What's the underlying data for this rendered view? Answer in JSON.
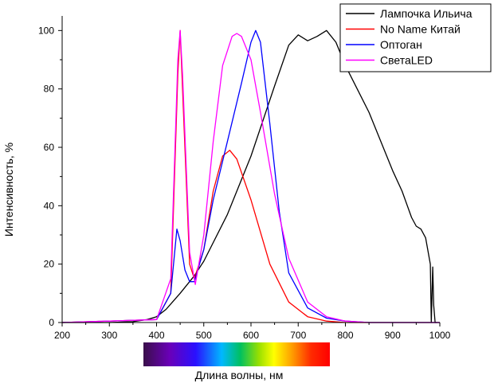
{
  "chart_data": {
    "type": "line",
    "xlabel": "Длина волны, нм",
    "ylabel": "Интенсивность, %",
    "xlim": [
      200,
      1000
    ],
    "ylim": [
      0,
      105
    ],
    "xticks": [
      200,
      300,
      400,
      500,
      600,
      700,
      800,
      900,
      1000
    ],
    "yticks": [
      0,
      20,
      40,
      60,
      80,
      100
    ],
    "grid": false,
    "legend_position": "top-right",
    "spectrum_bar": true,
    "series": [
      {
        "name": "Лампочка Ильича",
        "color": "#000000",
        "x": [
          200,
          300,
          350,
          380,
          400,
          420,
          450,
          480,
          500,
          550,
          600,
          650,
          680,
          700,
          720,
          740,
          760,
          780,
          800,
          850,
          900,
          920,
          940,
          950,
          960,
          970,
          980,
          982,
          985,
          987,
          990,
          993
        ],
        "y": [
          0,
          0,
          0.3,
          1,
          2,
          4.5,
          10,
          16,
          21,
          37,
          57,
          81,
          95,
          98.5,
          96.5,
          98,
          100,
          96,
          88,
          72,
          52,
          45,
          36,
          33,
          32,
          29,
          20,
          0,
          19,
          6,
          0,
          0
        ]
      },
      {
        "name": "No Name Китай",
        "color": "#ff0000",
        "x": [
          200,
          400,
          430,
          445,
          450,
          455,
          470,
          480,
          500,
          520,
          540,
          555,
          570,
          600,
          640,
          680,
          720,
          760,
          800,
          850,
          1000
        ],
        "y": [
          0,
          1,
          10,
          85,
          100,
          80,
          20,
          15,
          25,
          45,
          57,
          59,
          56,
          42,
          20,
          7,
          2,
          0.5,
          0,
          0,
          0
        ]
      },
      {
        "name": "Оптоган",
        "color": "#0000ff",
        "x": [
          200,
          400,
          430,
          443,
          450,
          460,
          470,
          480,
          500,
          520,
          550,
          580,
          600,
          610,
          620,
          640,
          660,
          680,
          720,
          760,
          800,
          850,
          1000
        ],
        "y": [
          0,
          1,
          10,
          32,
          28,
          18,
          14,
          14,
          25,
          42,
          62,
          82,
          96,
          100,
          96,
          68,
          38,
          17,
          5,
          1.5,
          0.5,
          0,
          0
        ]
      },
      {
        "name": "СветаLED",
        "color": "#ff00ff",
        "x": [
          200,
          400,
          430,
          445,
          450,
          455,
          470,
          482,
          500,
          520,
          540,
          560,
          570,
          580,
          600,
          620,
          650,
          680,
          720,
          760,
          800,
          850,
          1000
        ],
        "y": [
          0,
          1,
          15,
          90,
          100,
          85,
          24,
          13,
          30,
          62,
          88,
          98,
          99,
          98,
          90,
          72,
          44,
          22,
          7,
          2,
          0.5,
          0,
          0
        ]
      }
    ]
  }
}
